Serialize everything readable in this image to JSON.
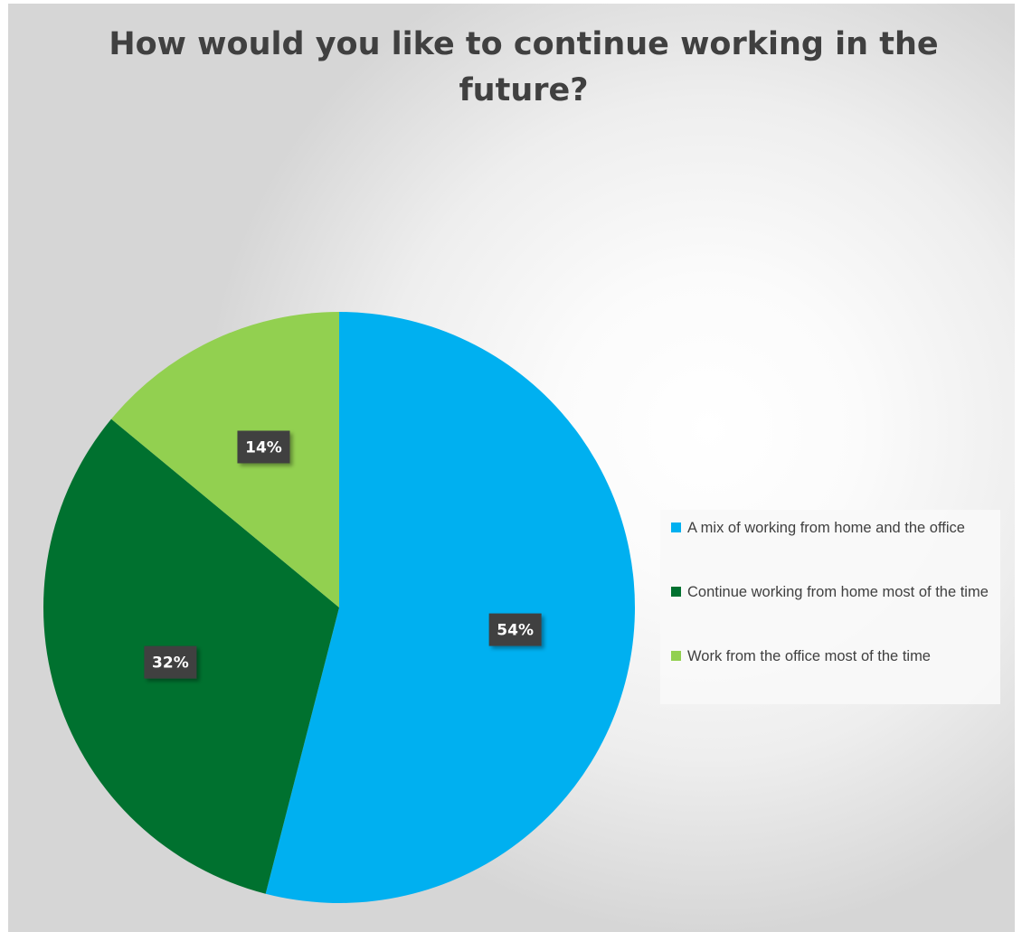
{
  "chart_data": {
    "type": "pie",
    "title": "How would you like to continue working in the future?",
    "slices": [
      {
        "label": "A mix of working from home and the office",
        "value": 54,
        "display": "54%",
        "color": "#00B0F0"
      },
      {
        "label": "Continue working from home most of the time",
        "value": 32,
        "display": "32%",
        "color": "#00712F"
      },
      {
        "label": "Work from the office most of the time",
        "value": 14,
        "display": "14%",
        "color": "#92D050"
      }
    ],
    "legend_position": "right",
    "data_label_background": "#404040"
  }
}
